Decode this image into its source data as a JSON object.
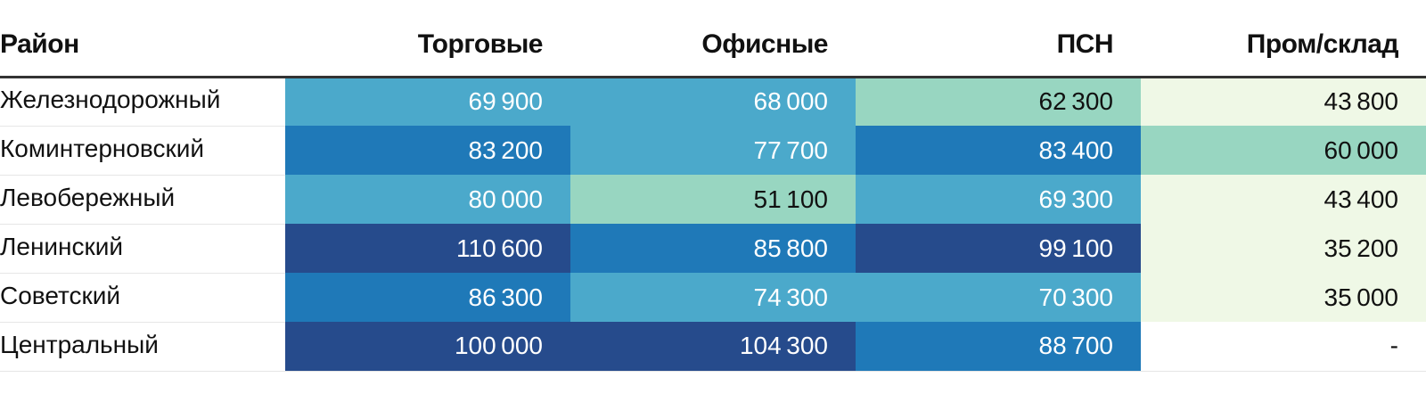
{
  "chart_data": {
    "type": "table",
    "columns": [
      "Район",
      "Торговые",
      "Офисные",
      "ПСН",
      "Пром/склад"
    ],
    "rows": [
      {
        "name": "Железнодорожный",
        "values": [
          69900,
          68000,
          62300,
          43800
        ]
      },
      {
        "name": "Коминтерновский",
        "values": [
          83200,
          77700,
          83400,
          60000
        ]
      },
      {
        "name": "Левобережный",
        "values": [
          80000,
          51100,
          69300,
          43400
        ]
      },
      {
        "name": "Ленинский",
        "values": [
          110600,
          85800,
          99100,
          35200
        ]
      },
      {
        "name": "Советский",
        "values": [
          86300,
          74300,
          70300,
          35000
        ]
      },
      {
        "name": "Центральный",
        "values": [
          100000,
          104300,
          88700,
          null
        ]
      }
    ],
    "missing_label": "-",
    "color_scale": [
      {
        "min": 0,
        "max": 45000,
        "bg": "#eff8e6",
        "text": "#111111"
      },
      {
        "min": 45000,
        "max": 65000,
        "bg": "#98d6c1",
        "text": "#111111"
      },
      {
        "min": 65000,
        "max": 82000,
        "bg": "#4ba9cb",
        "text": "#ffffff"
      },
      {
        "min": 82000,
        "max": 90000,
        "bg": "#1f79b8",
        "text": "#ffffff"
      },
      {
        "min": 90000,
        "max": 200000,
        "bg": "#264b8c",
        "text": "#ffffff"
      }
    ],
    "missing_bg": "#ffffff",
    "missing_text": "#111111"
  }
}
